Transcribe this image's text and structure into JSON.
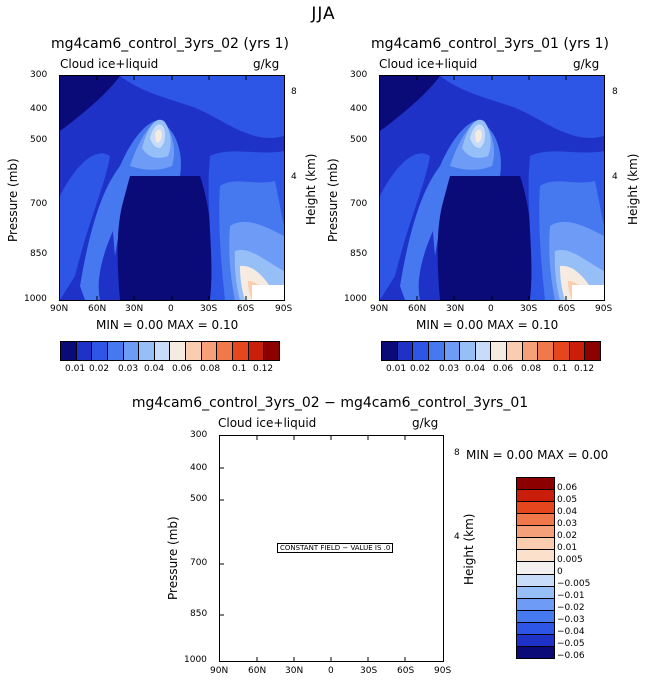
{
  "suptitle": "JJA",
  "panels": [
    {
      "title": "mg4cam6_control_3yrs_02 (yrs 1)",
      "field": "Cloud ice+liquid",
      "units": "g/kg",
      "minmax": "MIN =    0.00   MAX =    0.10"
    },
    {
      "title": "mg4cam6_control_3yrs_01 (yrs 1)",
      "field": "Cloud ice+liquid",
      "units": "g/kg",
      "minmax": "MIN =    0.00   MAX =    0.10"
    }
  ],
  "diff_panel": {
    "title": "mg4cam6_control_3yrs_02 − mg4cam6_control_3yrs_01",
    "field": "Cloud ice+liquid",
    "units": "g/kg",
    "minmax": "MIN =    0.00   MAX =    0.00",
    "constant_label": "CONSTANT FIELD − VALUE IS .0"
  },
  "axis_labels": {
    "ylabel": "Pressure (mb)",
    "y2label": "Height (km)"
  },
  "chart_data": [
    {
      "type": "heatmap",
      "title": "mg4cam6_control_3yrs_02 (yrs 1)",
      "xlabel": "",
      "ylabel": "Pressure (mb)",
      "x_ticks": [
        "90N",
        "60N",
        "30N",
        "0",
        "30S",
        "60S",
        "90S"
      ],
      "y_ticks": [
        "300",
        "400",
        "500",
        "700",
        "850",
        "1000"
      ],
      "y2_ticks": [
        "8",
        "4"
      ],
      "min": 0.0,
      "max": 0.1,
      "levels": [
        "0.01",
        "0.02",
        "0.03",
        "0.04",
        "0.06",
        "0.08",
        "0.1",
        "0.12"
      ]
    },
    {
      "type": "heatmap",
      "title": "mg4cam6_control_3yrs_01 (yrs 1)",
      "xlabel": "",
      "ylabel": "Pressure (mb)",
      "x_ticks": [
        "90N",
        "60N",
        "30N",
        "0",
        "30S",
        "60S",
        "90S"
      ],
      "y_ticks": [
        "300",
        "400",
        "500",
        "700",
        "850",
        "1000"
      ],
      "y2_ticks": [
        "8",
        "4"
      ],
      "min": 0.0,
      "max": 0.1,
      "levels": [
        "0.01",
        "0.02",
        "0.03",
        "0.04",
        "0.06",
        "0.08",
        "0.1",
        "0.12"
      ]
    },
    {
      "type": "heatmap",
      "title": "mg4cam6_control_3yrs_02 − mg4cam6_control_3yrs_01",
      "xlabel": "",
      "ylabel": "Pressure (mb)",
      "x_ticks": [
        "90N",
        "60N",
        "30N",
        "0",
        "30S",
        "60S",
        "90S"
      ],
      "y_ticks": [
        "300",
        "400",
        "500",
        "700",
        "850",
        "1000"
      ],
      "y2_ticks": [
        "8",
        "4"
      ],
      "min": 0.0,
      "max": 0.0,
      "levels": [
        "0.06",
        "0.05",
        "0.04",
        "0.03",
        "0.02",
        "0.01",
        "0.005",
        "0",
        "−0.005",
        "−0.01",
        "−0.02",
        "−0.03",
        "−0.04",
        "−0.05",
        "−0.06"
      ]
    }
  ],
  "colorbar_colors": [
    "#0a0a78",
    "#1e32c8",
    "#2d55e6",
    "#4678f0",
    "#6e9bf5",
    "#96bff8",
    "#c8dcfa",
    "#f5ebe1",
    "#fbcdb0",
    "#f5a078",
    "#f0784b",
    "#e6461e",
    "#c81e0a",
    "#8c0000"
  ],
  "diff_colors": [
    "#8c0000",
    "#c81e0a",
    "#e6461e",
    "#f0784b",
    "#f5a078",
    "#fbcdb0",
    "#fbe0cc",
    "#f5f0f0",
    "#c8dcfa",
    "#96bff8",
    "#6e9bf5",
    "#4678f0",
    "#2d55e6",
    "#1e32c8",
    "#0a0a78"
  ]
}
